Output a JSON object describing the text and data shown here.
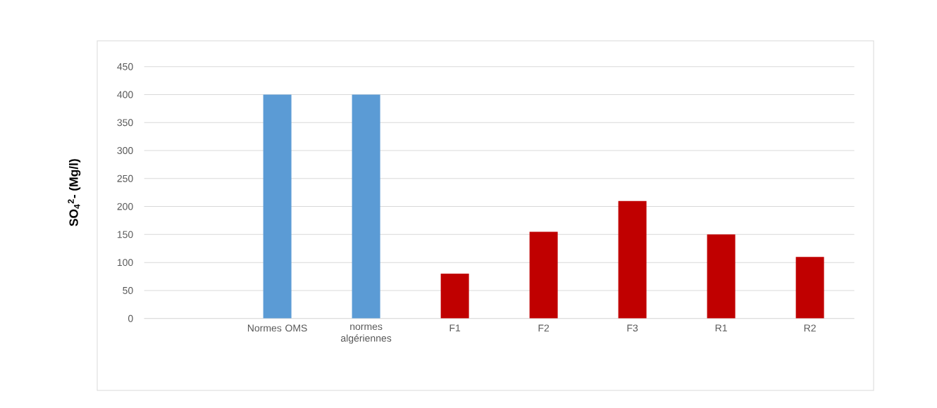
{
  "chart_data": {
    "type": "bar",
    "ylabel": "SO$_{4}$$^{2}$-   (Mg/l)",
    "categories": [
      null,
      "Normes OMS",
      "normes algériennes",
      "F1",
      "F2",
      "F3",
      "R1",
      "R2"
    ],
    "values": [
      null,
      400,
      400,
      80,
      155,
      210,
      150,
      110
    ],
    "colors": [
      "#5b9bd5",
      "#5b9bd5",
      "#5b9bd5",
      "#c00000",
      "#c00000",
      "#c00000",
      "#c00000",
      "#c00000"
    ],
    "ylim": [
      0,
      450
    ],
    "yticks": [
      0,
      50,
      100,
      150,
      200,
      250,
      300,
      350,
      400,
      450
    ],
    "grid": "y"
  }
}
